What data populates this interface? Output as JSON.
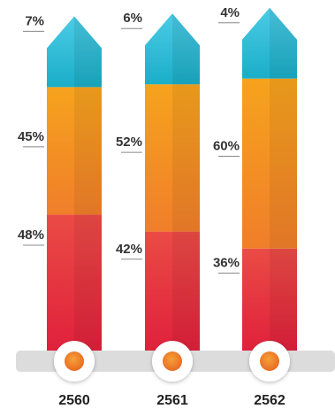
{
  "chart_data": {
    "type": "bar",
    "stacked": true,
    "categories": [
      "2560",
      "2561",
      "2562"
    ],
    "series": [
      {
        "values": [
          48,
          42,
          36
        ],
        "color": "#e8343f"
      },
      {
        "values": [
          45,
          52,
          60
        ],
        "color": "#f39020"
      },
      {
        "values": [
          7,
          6,
          4
        ],
        "color": "#2ab9d4"
      }
    ],
    "labels": [
      [
        "48%",
        "45%",
        "7%"
      ],
      [
        "42%",
        "52%",
        "6%"
      ],
      [
        "36%",
        "60%",
        "4%"
      ]
    ],
    "ylim": [
      0,
      100
    ],
    "grid": false,
    "legend": "none"
  }
}
